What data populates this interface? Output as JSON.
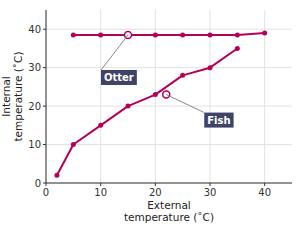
{
  "chart_data": {
    "type": "line",
    "xlabel": "External\ntemperature (˚C)",
    "ylabel": "Internal\ntemperature (˚C)",
    "series": [
      {
        "color": "#B5005B",
        "marker": "circle",
        "x": [
          5,
          10,
          15,
          20,
          25,
          30,
          35,
          40
        ],
        "values": [
          38.5,
          38.5,
          38.5,
          38.5,
          38.5,
          38.5,
          38.5,
          39.0
        ]
      },
      {
        "color": "#B5005B",
        "marker": "circle",
        "x": [
          2,
          5,
          10,
          15,
          20,
          25,
          30,
          35
        ],
        "values": [
          2,
          10,
          15,
          20,
          23,
          28,
          30,
          35
        ]
      }
    ],
    "annotations": [
      {
        "text": "Otter",
        "x": 15,
        "y": 38.5
      },
      {
        "text": "Fish",
        "x": 22,
        "y": 23
      }
    ],
    "xlim": [
      0,
      45
    ],
    "ylim": [
      0,
      45
    ],
    "xticks": [
      0,
      10,
      20,
      30,
      40
    ],
    "yticks": [
      0,
      10,
      20,
      30,
      40
    ],
    "grid": true
  }
}
